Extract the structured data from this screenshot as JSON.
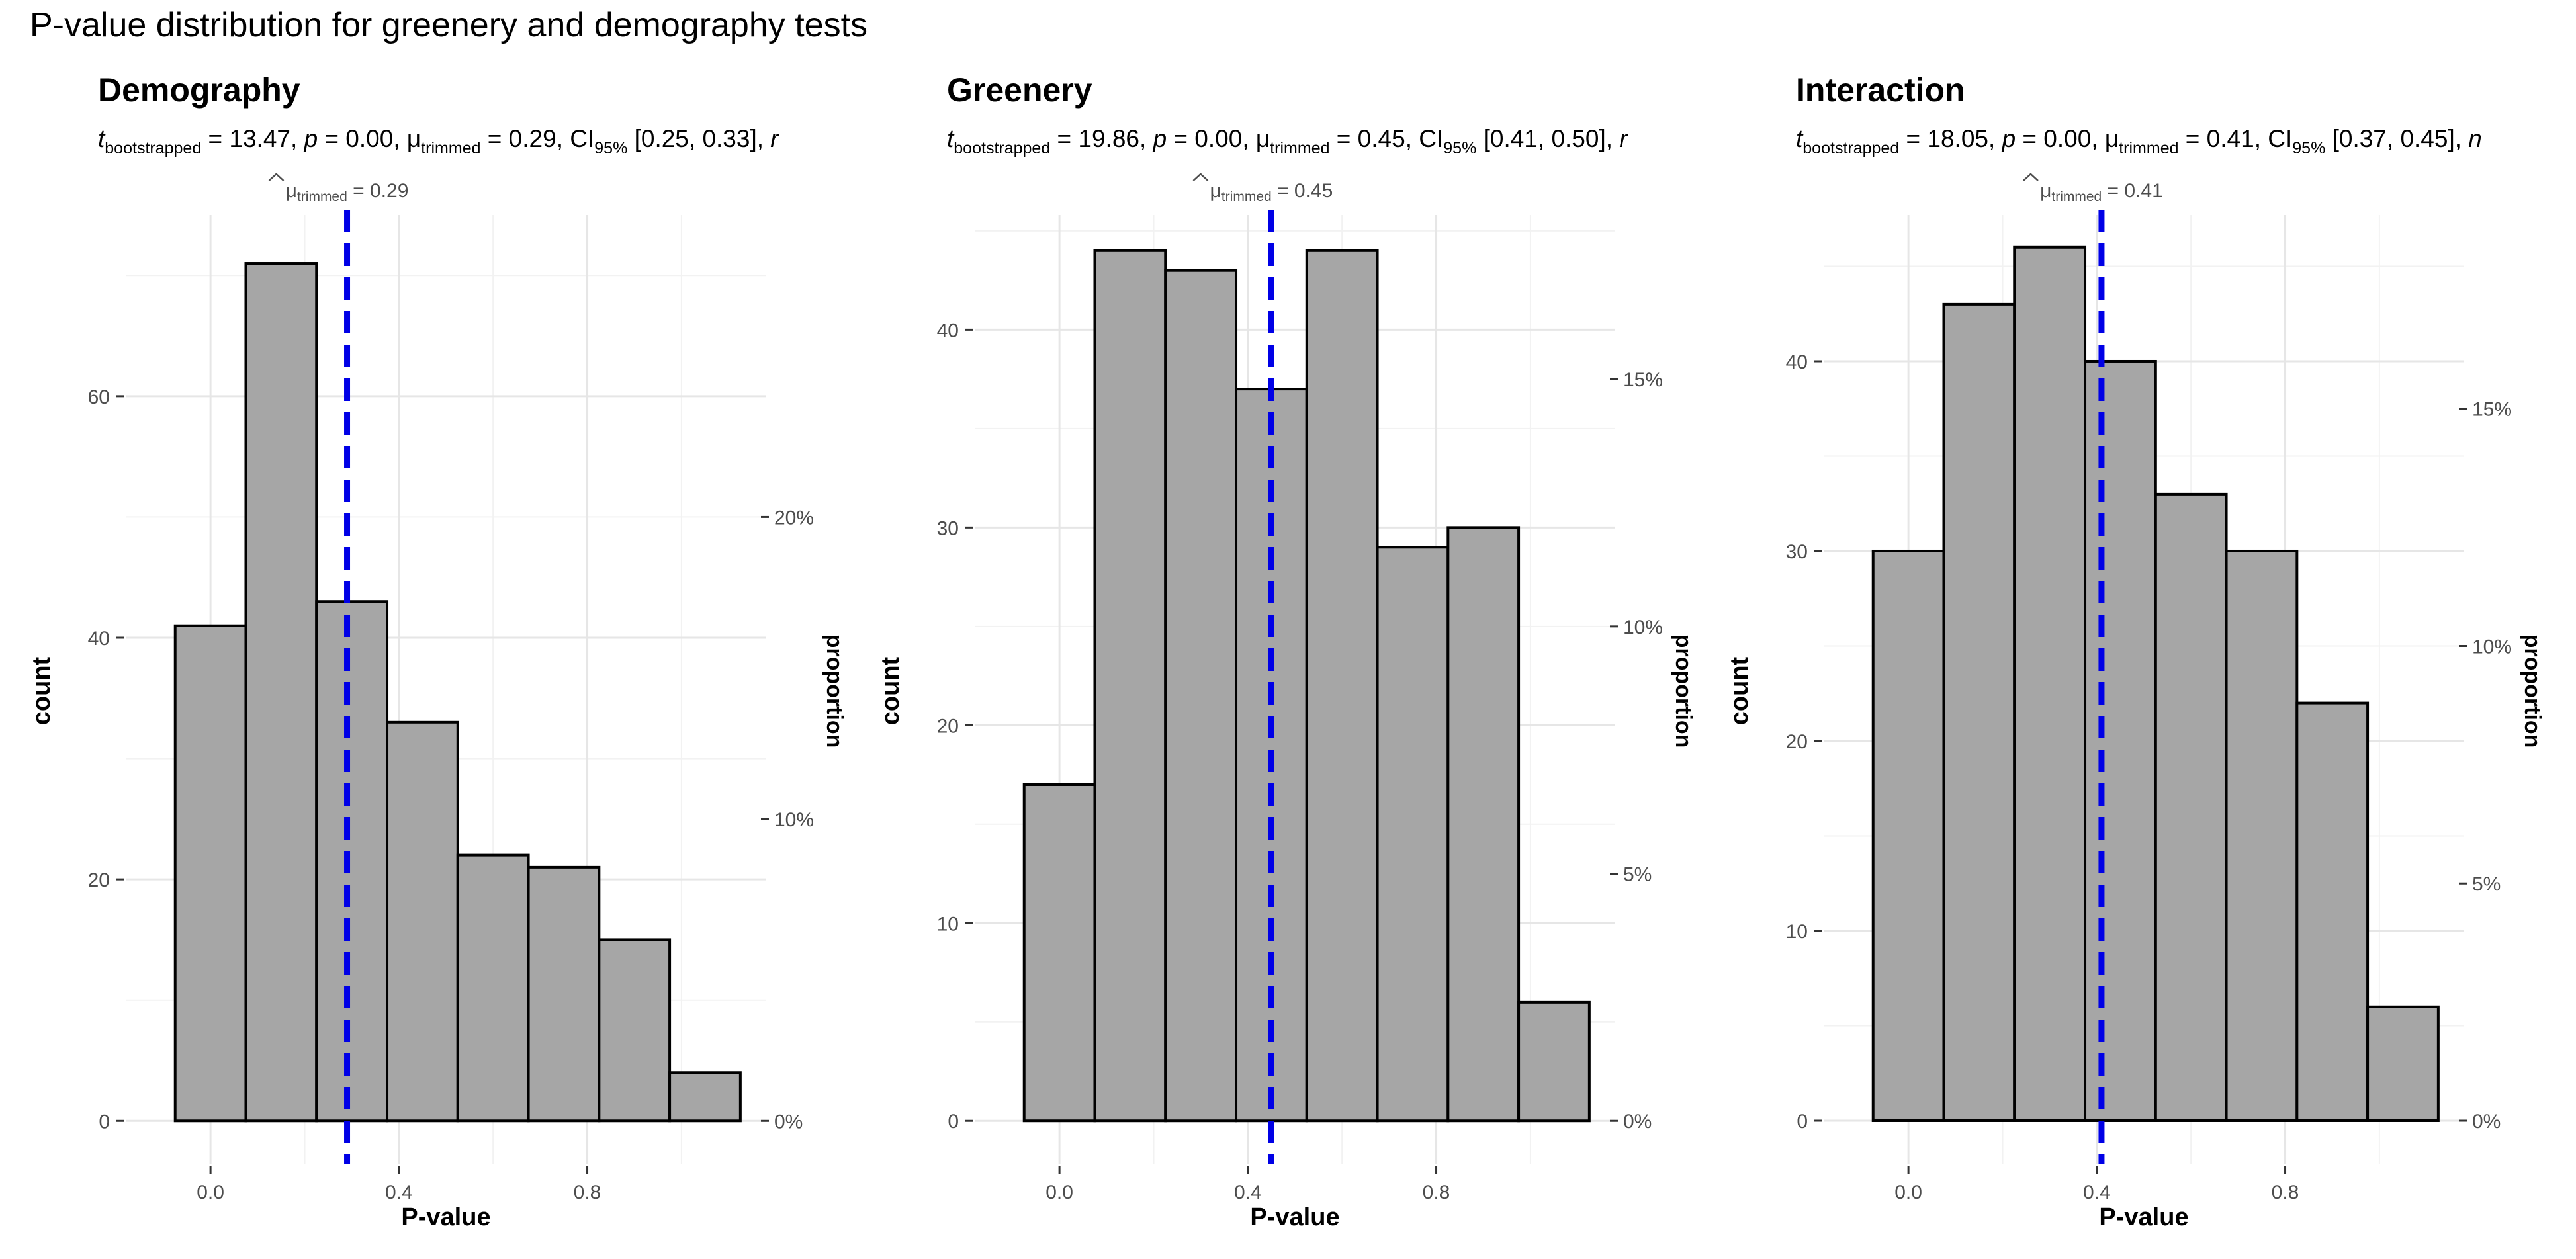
{
  "title": "P-value distribution for greenery and demography tests",
  "colors": {
    "bar_fill": "#a6a6a6",
    "bar_stroke": "#000000",
    "mean_line": "#0000e6",
    "grid_major": "#e6e6e6",
    "grid_minor": "#f2f2f2"
  },
  "chart_data": [
    {
      "type": "bar",
      "title": "Demography",
      "subtitle": {
        "t_label": "t",
        "t_sub": "bootstrapped",
        "t_value": " = 13.47, ",
        "p_label": "p",
        "p_value": " = 0.00, ",
        "mu_label": "μ",
        "mu_sub": "trimmed",
        "mu_value": " = 0.29, ",
        "ci_label": "CI",
        "ci_sub": "95%",
        "ci_value": " [0.25, 0.33], ",
        "trail": "r"
      },
      "mean_label": "μ",
      "mean_sub": "trimmed",
      "mean_value": " = 0.29",
      "mean": 0.29,
      "bin_width": 0.15,
      "bin_centers": [
        0.0,
        0.15,
        0.3,
        0.45,
        0.6,
        0.75,
        0.9,
        1.05
      ],
      "values": [
        41,
        71,
        43,
        33,
        22,
        21,
        15,
        4
      ],
      "xlabel": "P-value",
      "ylabel": "count",
      "y2label": "proportion",
      "xlim": [
        -0.18,
        1.18
      ],
      "ylim": [
        -3.6,
        75
      ],
      "x_ticks": [
        0.0,
        0.4,
        0.8
      ],
      "x_tick_labels": [
        "0.0",
        "0.4",
        "0.8"
      ],
      "y_ticks": [
        0,
        20,
        40,
        60
      ],
      "y_tick_labels": [
        "0",
        "20",
        "40",
        "60"
      ],
      "y2_ticks": [
        0,
        0.1,
        0.2
      ],
      "y2_tick_labels": [
        "0%",
        "10%",
        "20%"
      ],
      "total": 250,
      "grid": true
    },
    {
      "type": "bar",
      "title": "Greenery",
      "subtitle": {
        "t_label": "t",
        "t_sub": "bootstrapped",
        "t_value": " = 19.86, ",
        "p_label": "p",
        "p_value": " = 0.00, ",
        "mu_label": "μ",
        "mu_sub": "trimmed",
        "mu_value": " = 0.45, ",
        "ci_label": "CI",
        "ci_sub": "95%",
        "ci_value": " [0.41, 0.50], ",
        "trail": "r"
      },
      "mean_label": "μ",
      "mean_sub": "trimmed",
      "mean_value": " = 0.45",
      "mean": 0.45,
      "bin_width": 0.15,
      "bin_centers": [
        0.0,
        0.15,
        0.3,
        0.45,
        0.6,
        0.75,
        0.9,
        1.05
      ],
      "values": [
        17,
        44,
        43,
        37,
        44,
        29,
        30,
        6
      ],
      "xlabel": "P-value",
      "ylabel": "count",
      "y2label": "proportion",
      "xlim": [
        -0.18,
        1.18
      ],
      "ylim": [
        -2.2,
        45.8
      ],
      "x_ticks": [
        0.0,
        0.4,
        0.8
      ],
      "x_tick_labels": [
        "0.0",
        "0.4",
        "0.8"
      ],
      "y_ticks": [
        0,
        10,
        20,
        30,
        40
      ],
      "y_tick_labels": [
        "0",
        "10",
        "20",
        "30",
        "40"
      ],
      "y2_ticks": [
        0,
        0.05,
        0.1,
        0.15
      ],
      "y2_tick_labels": [
        "0%",
        "5%",
        "10%",
        "15%"
      ],
      "total": 250,
      "grid": true
    },
    {
      "type": "bar",
      "title": "Interaction",
      "subtitle": {
        "t_label": "t",
        "t_sub": "bootstrapped",
        "t_value": " = 18.05, ",
        "p_label": "p",
        "p_value": " = 0.00, ",
        "mu_label": "μ",
        "mu_sub": "trimmed",
        "mu_value": " = 0.41, ",
        "ci_label": "CI",
        "ci_sub": "95%",
        "ci_value": " [0.37, 0.45], ",
        "trail": "n"
      },
      "mean_label": "μ",
      "mean_sub": "trimmed",
      "mean_value": " = 0.41",
      "mean": 0.41,
      "bin_width": 0.15,
      "bin_centers": [
        0.0,
        0.15,
        0.3,
        0.45,
        0.6,
        0.75,
        0.9,
        1.05
      ],
      "values": [
        30,
        43,
        46,
        40,
        33,
        30,
        22,
        6
      ],
      "xlabel": "P-value",
      "ylabel": "count",
      "y2label": "proportion",
      "xlim": [
        -0.18,
        1.18
      ],
      "ylim": [
        -2.3,
        47.7
      ],
      "x_ticks": [
        0.0,
        0.4,
        0.8
      ],
      "x_tick_labels": [
        "0.0",
        "0.4",
        "0.8"
      ],
      "y_ticks": [
        0,
        10,
        20,
        30,
        40
      ],
      "y_tick_labels": [
        "0",
        "10",
        "20",
        "30",
        "40"
      ],
      "y2_ticks": [
        0,
        0.05,
        0.1,
        0.15
      ],
      "y2_tick_labels": [
        "0%",
        "5%",
        "10%",
        "15%"
      ],
      "total": 250,
      "grid": true
    }
  ]
}
